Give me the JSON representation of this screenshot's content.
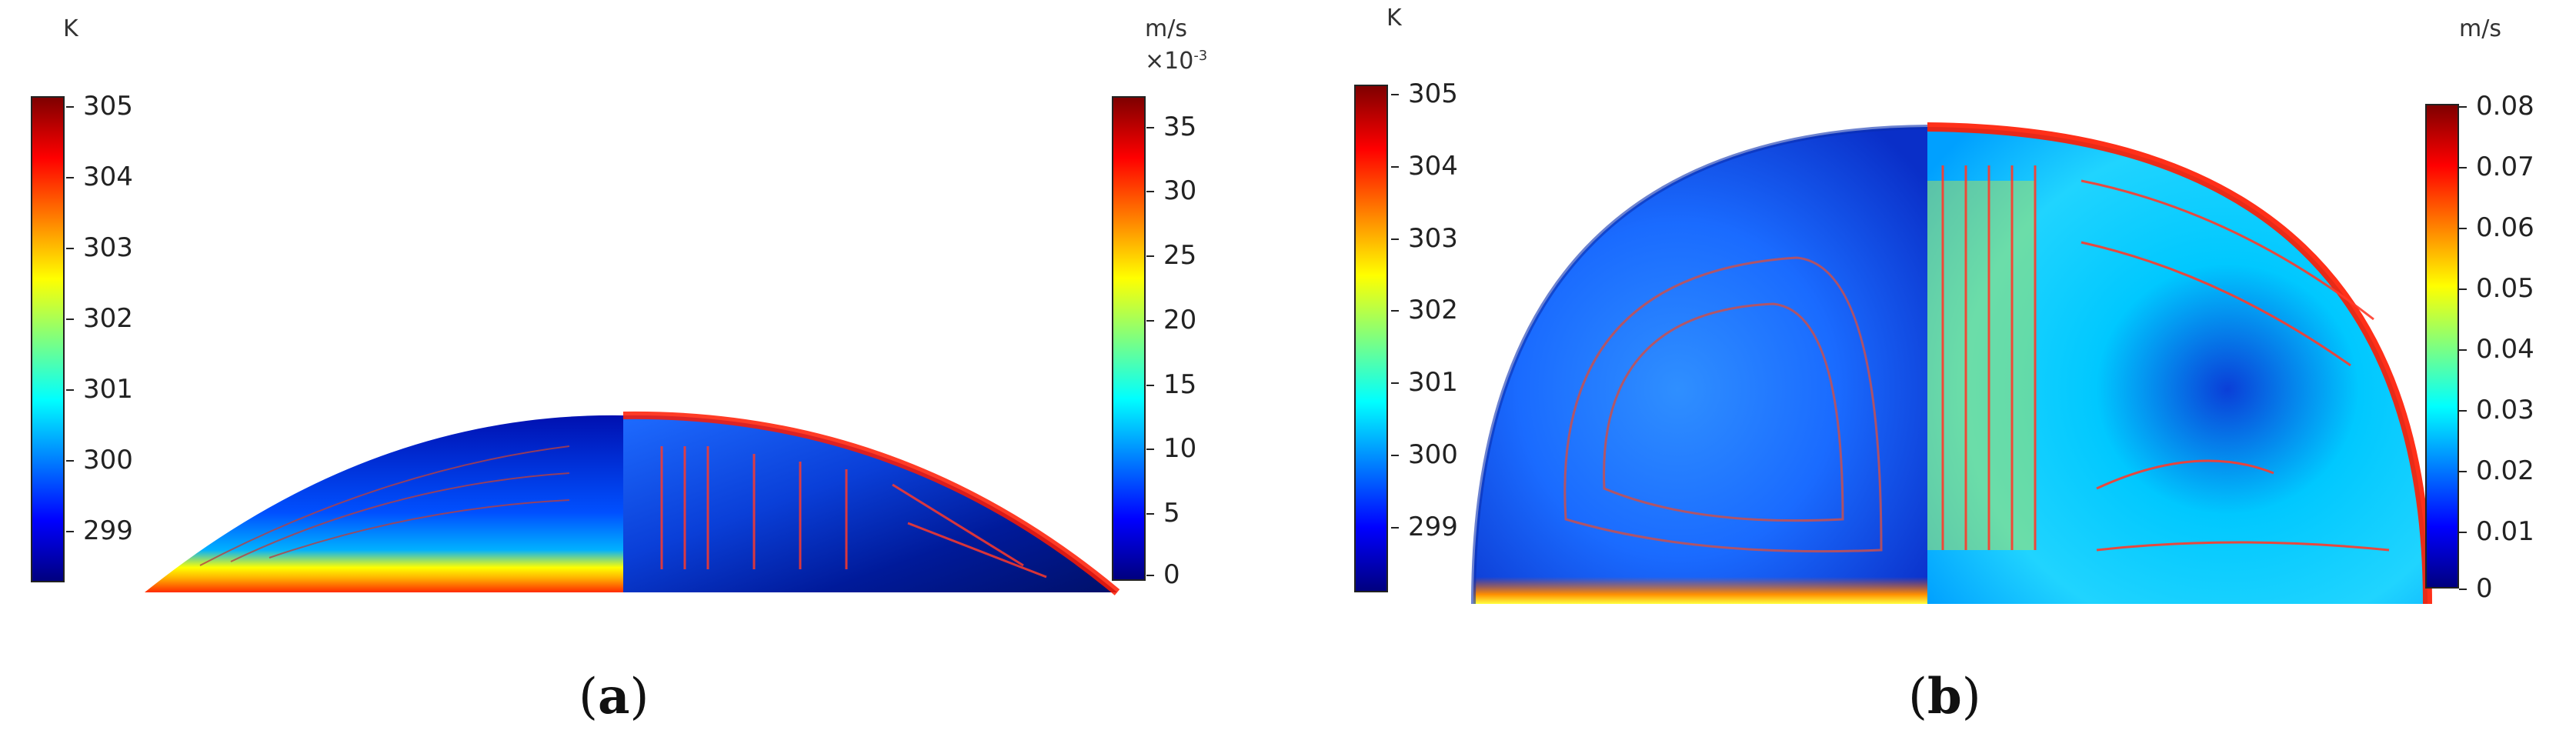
{
  "panels": [
    {
      "caption_letter": "a",
      "temp_unit": "K",
      "temp_ticks": [
        "305",
        "304",
        "303",
        "302",
        "301",
        "300",
        "299"
      ],
      "vel_unit": "m/s",
      "vel_multiplier": "×10",
      "vel_multiplier_exp": "-3",
      "vel_ticks": [
        "35",
        "30",
        "25",
        "20",
        "15",
        "10",
        "5",
        "0"
      ]
    },
    {
      "caption_letter": "b",
      "temp_unit": "K",
      "temp_ticks": [
        "305",
        "304",
        "303",
        "302",
        "301",
        "300",
        "299"
      ],
      "vel_unit": "m/s",
      "vel_ticks": [
        "0.08",
        "0.07",
        "0.06",
        "0.05",
        "0.04",
        "0.03",
        "0.02",
        "0.01",
        "0"
      ]
    }
  ],
  "colormap": [
    "#00007f",
    "#0000ff",
    "#007fff",
    "#00ffff",
    "#7fff7f",
    "#ffff00",
    "#ff7f00",
    "#ff0000",
    "#7f0000"
  ]
}
